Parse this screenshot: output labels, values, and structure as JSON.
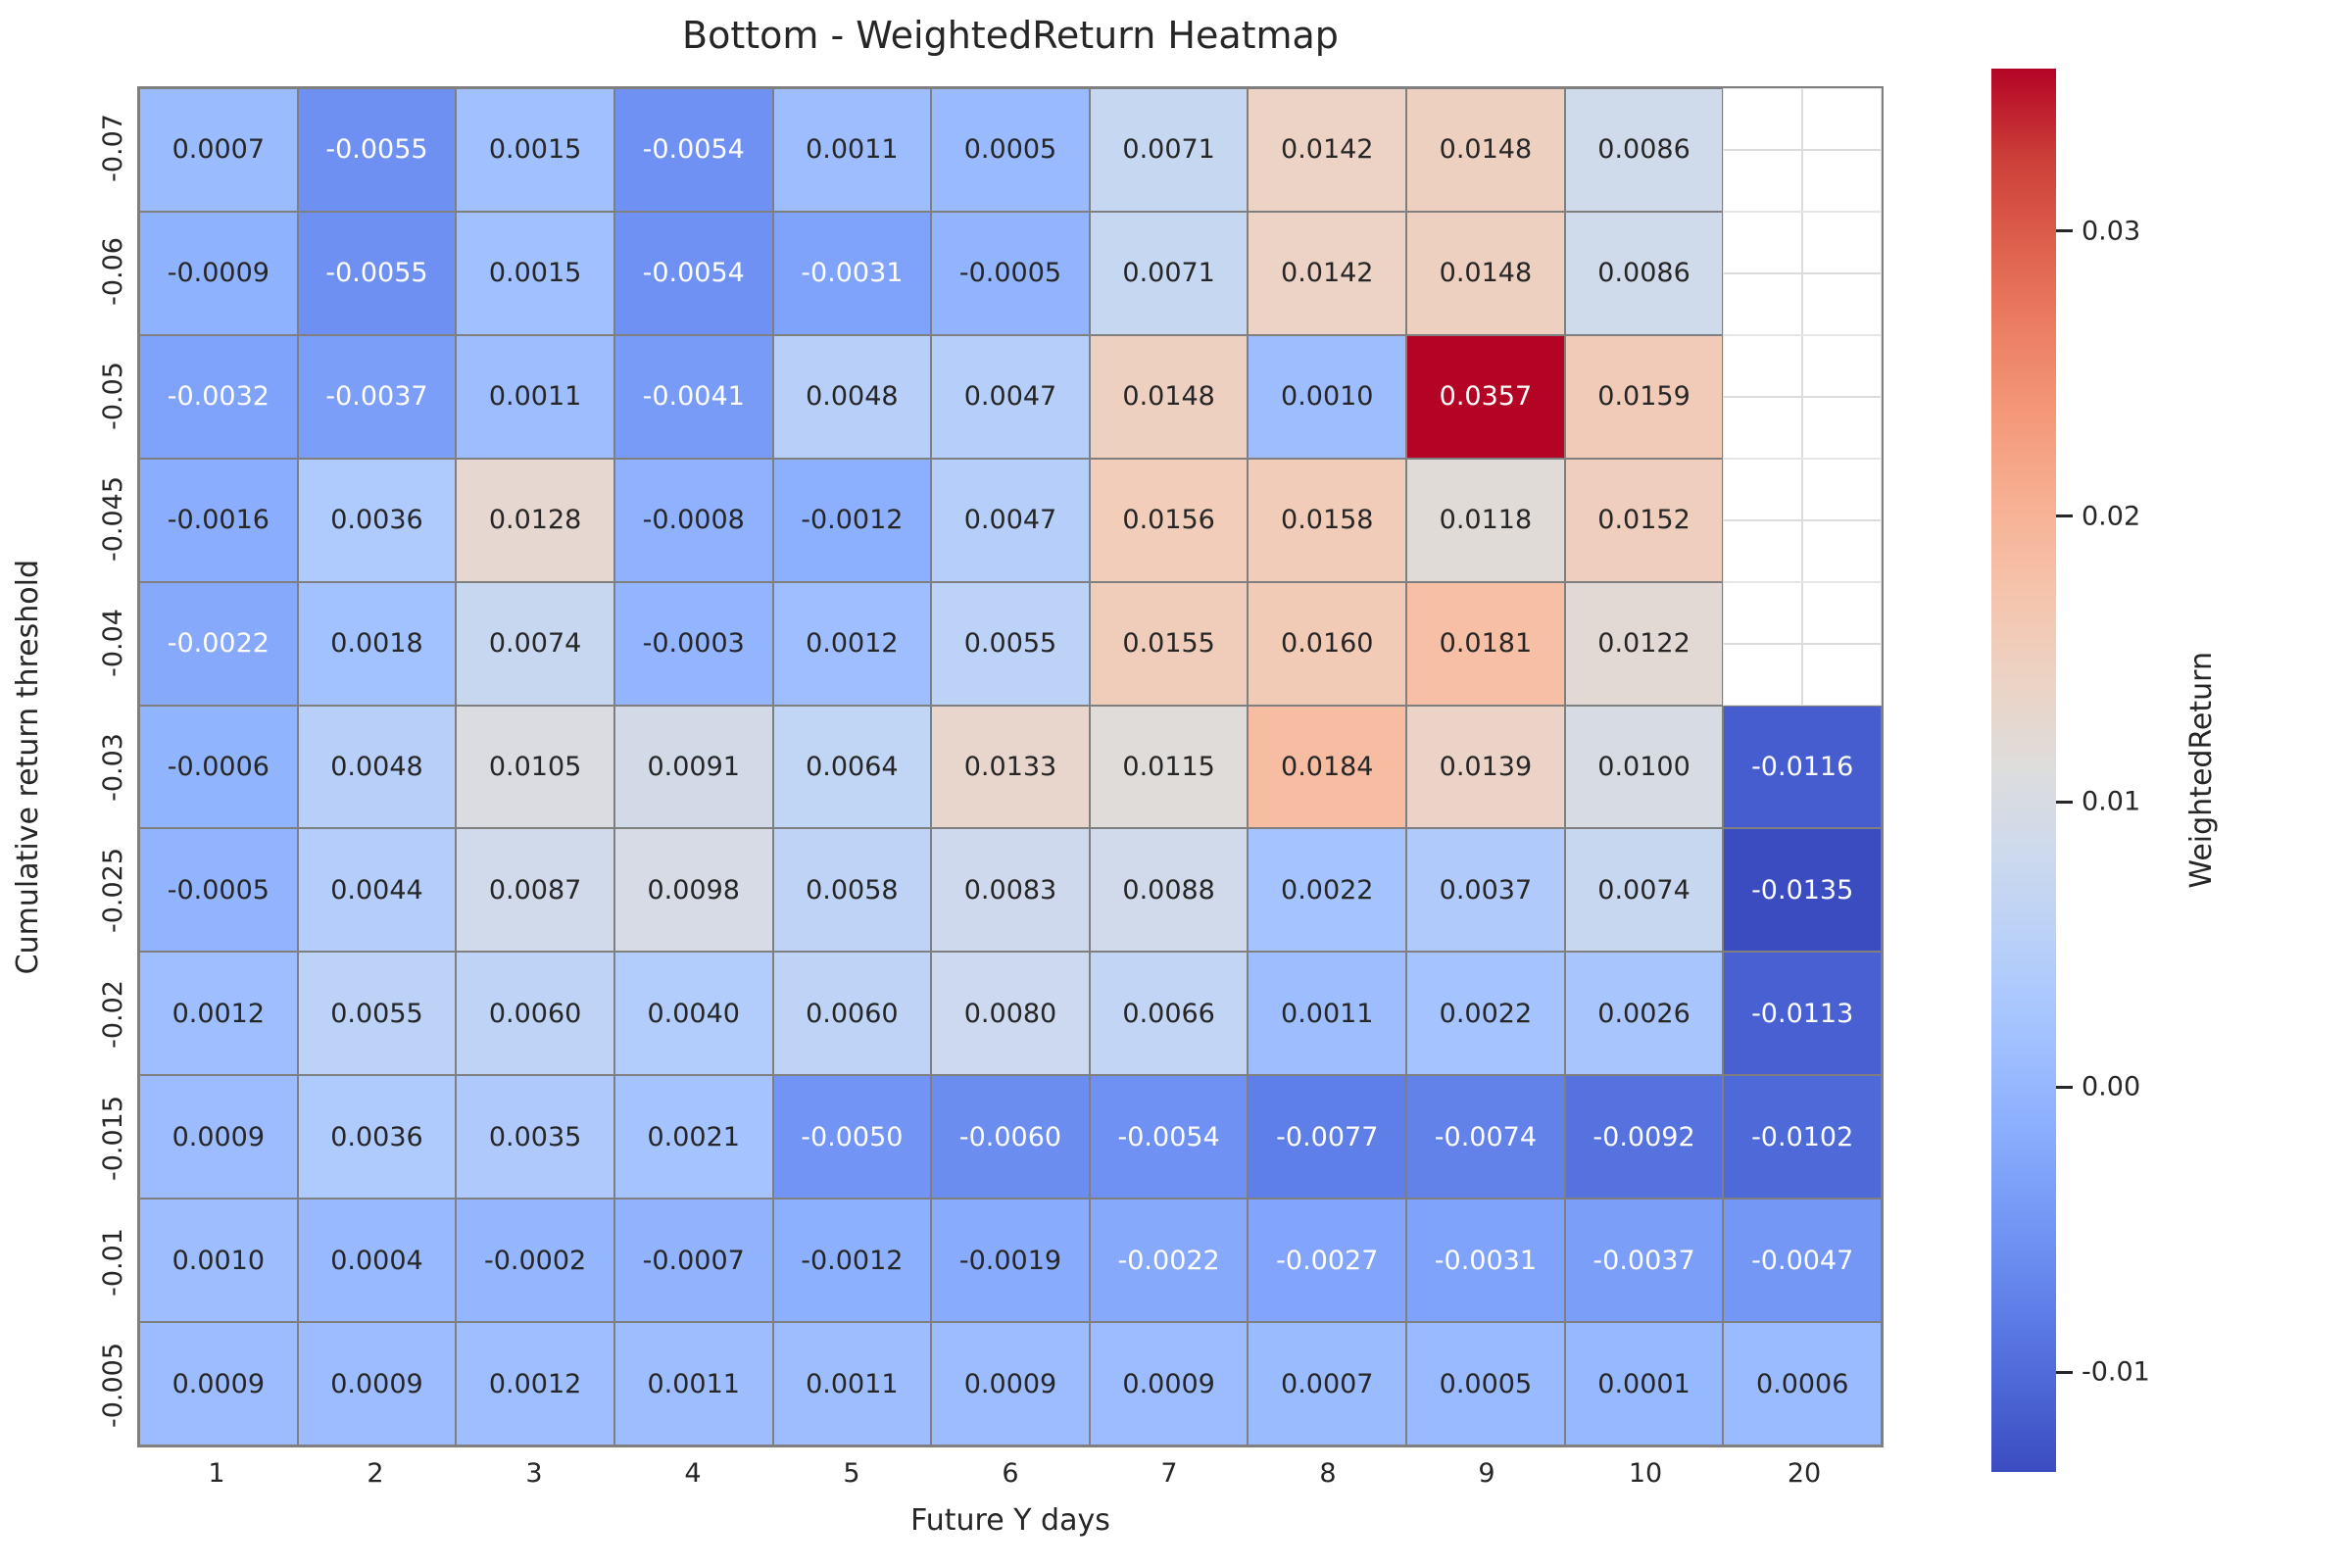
{
  "figure": {
    "background": "#ffffff"
  },
  "chart_data": {
    "type": "heatmap",
    "title": "Bottom - WeightedReturn Heatmap",
    "xlabel": "Future Y days",
    "ylabel": "Cumulative return threshold",
    "x_categories": [
      "1",
      "2",
      "3",
      "4",
      "5",
      "6",
      "7",
      "8",
      "9",
      "10",
      "20"
    ],
    "y_categories": [
      "-0.07",
      "-0.06",
      "-0.05",
      "-0.045",
      "-0.04",
      "-0.03",
      "-0.025",
      "-0.02",
      "-0.015",
      "-0.01",
      "-0.005"
    ],
    "values": [
      [
        0.0007,
        -0.0055,
        0.0015,
        -0.0054,
        0.0011,
        0.0005,
        0.0071,
        0.0142,
        0.0148,
        0.0086,
        null
      ],
      [
        -0.0009,
        -0.0055,
        0.0015,
        -0.0054,
        -0.0031,
        -0.0005,
        0.0071,
        0.0142,
        0.0148,
        0.0086,
        null
      ],
      [
        -0.0032,
        -0.0037,
        0.0011,
        -0.0041,
        0.0048,
        0.0047,
        0.0148,
        0.001,
        0.0357,
        0.0159,
        null
      ],
      [
        -0.0016,
        0.0036,
        0.0128,
        -0.0008,
        -0.0012,
        0.0047,
        0.0156,
        0.0158,
        0.0118,
        0.0152,
        null
      ],
      [
        -0.0022,
        0.0018,
        0.0074,
        -0.0003,
        0.0012,
        0.0055,
        0.0155,
        0.016,
        0.0181,
        0.0122,
        null
      ],
      [
        -0.0006,
        0.0048,
        0.0105,
        0.0091,
        0.0064,
        0.0133,
        0.0115,
        0.0184,
        0.0139,
        0.01,
        -0.0116
      ],
      [
        -0.0005,
        0.0044,
        0.0087,
        0.0098,
        0.0058,
        0.0083,
        0.0088,
        0.0022,
        0.0037,
        0.0074,
        -0.0135
      ],
      [
        0.0012,
        0.0055,
        0.006,
        0.004,
        0.006,
        0.008,
        0.0066,
        0.0011,
        0.0022,
        0.0026,
        -0.0113
      ],
      [
        0.0009,
        0.0036,
        0.0035,
        0.0021,
        -0.005,
        -0.006,
        -0.0054,
        -0.0077,
        -0.0074,
        -0.0092,
        -0.0102
      ],
      [
        0.001,
        0.0004,
        -0.0002,
        -0.0007,
        -0.0012,
        -0.0019,
        -0.0022,
        -0.0027,
        -0.0031,
        -0.0037,
        -0.0047
      ],
      [
        0.0009,
        0.0009,
        0.0012,
        0.0011,
        0.0011,
        0.0009,
        0.0009,
        0.0007,
        0.0005,
        0.0001,
        0.0006
      ]
    ],
    "value_decimals": 4,
    "vmin": -0.0135,
    "vmax": 0.0357,
    "colormap": "coolwarm",
    "legend_position": "right-colorbar",
    "grid": true,
    "colorbar": {
      "label": "WeightedReturn",
      "ticks": [
        0.03,
        0.02,
        0.01,
        0.0,
        -0.01
      ],
      "tick_labels": [
        "0.03",
        "0.02",
        "0.01",
        "0.00",
        "-0.01"
      ]
    }
  },
  "colors": {
    "background": "#ffffff",
    "cell_line": "#7f7f7f",
    "nan_grid_line": "#dcdcdc",
    "text_dark": "#262626",
    "text_light": "#ffffff",
    "cmap_low": "#3b4cc0",
    "cmap_mid": "#dddddd",
    "cmap_high": "#b40426"
  }
}
